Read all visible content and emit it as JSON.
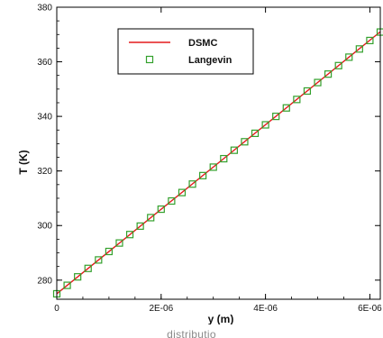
{
  "chart_data": {
    "type": "line",
    "title": "",
    "xlabel": "y (m)",
    "ylabel": "T (K)",
    "xlim": [
      0,
      6.2e-06
    ],
    "ylim": [
      273,
      380
    ],
    "x_ticks": [
      {
        "value": 0,
        "label": "0"
      },
      {
        "value": 2e-06,
        "label": "2E-06"
      },
      {
        "value": 4e-06,
        "label": "4E-06"
      },
      {
        "value": 6e-06,
        "label": "6E-06"
      }
    ],
    "y_ticks": [
      {
        "value": 280,
        "label": "280"
      },
      {
        "value": 300,
        "label": "300"
      },
      {
        "value": 320,
        "label": "320"
      },
      {
        "value": 340,
        "label": "340"
      },
      {
        "value": 360,
        "label": "360"
      },
      {
        "value": 380,
        "label": "380"
      }
    ],
    "grid": false,
    "legend_position": "top-center",
    "series": [
      {
        "name": "DSMC",
        "style": "line",
        "color": "#e41a1c",
        "x": [
          0,
          6.2e-06
        ],
        "y": [
          275,
          371
        ]
      },
      {
        "name": "Langevin",
        "style": "markers",
        "marker": "open-square",
        "color": "#33a02c",
        "x": [
          0,
          2e-07,
          4e-07,
          6e-07,
          8e-07,
          1e-06,
          1.2e-06,
          1.4e-06,
          1.6e-06,
          1.8e-06,
          2e-06,
          2.2e-06,
          2.4e-06,
          2.6e-06,
          2.8e-06,
          3e-06,
          3.2e-06,
          3.4e-06,
          3.6e-06,
          3.8e-06,
          4e-06,
          4.2e-06,
          4.4e-06,
          4.6e-06,
          4.8e-06,
          5e-06,
          5.2e-06,
          5.4e-06,
          5.6e-06,
          5.8e-06,
          6e-06,
          6.2e-06
        ],
        "y": [
          275,
          278.1,
          281.2,
          284.3,
          287.4,
          290.5,
          293.6,
          296.7,
          299.8,
          302.9,
          306.0,
          309.0,
          312.1,
          315.2,
          318.3,
          321.4,
          324.5,
          327.6,
          330.7,
          333.8,
          336.9,
          340.0,
          343.1,
          346.2,
          349.3,
          352.4,
          355.5,
          358.6,
          361.7,
          364.7,
          367.8,
          370.9
        ]
      }
    ]
  },
  "caption": "distributio"
}
